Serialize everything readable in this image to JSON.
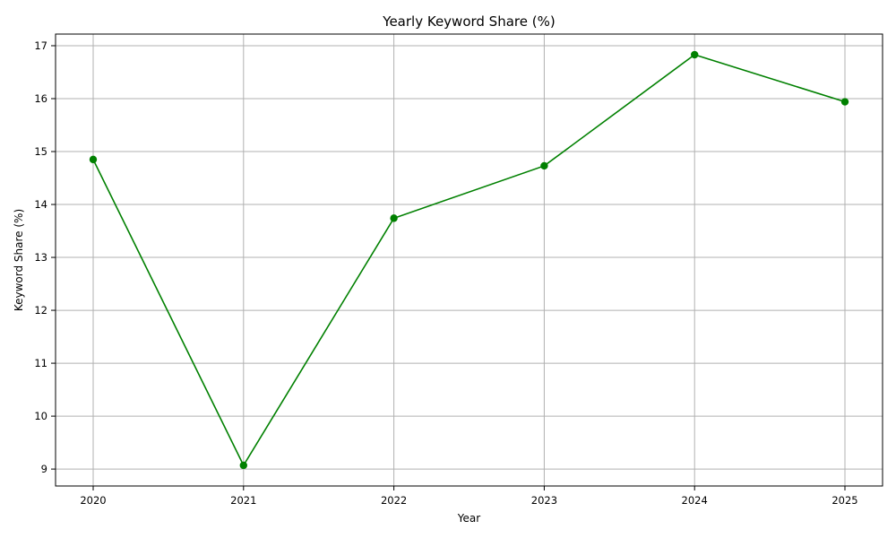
{
  "chart_data": {
    "type": "line",
    "title": "Yearly Keyword Share (%)",
    "xlabel": "Year",
    "ylabel": "Keyword Share (%)",
    "categories": [
      "2020",
      "2021",
      "2022",
      "2023",
      "2024",
      "2025"
    ],
    "series": [
      {
        "values": [
          14.85,
          9.07,
          13.74,
          14.73,
          16.83,
          15.94
        ]
      }
    ],
    "yticks": [
      9,
      10,
      11,
      12,
      13,
      14,
      15,
      16,
      17
    ],
    "ylim": [
      8.68,
      17.22
    ],
    "grid": true,
    "line_color": "#008000",
    "marker": "circle"
  }
}
